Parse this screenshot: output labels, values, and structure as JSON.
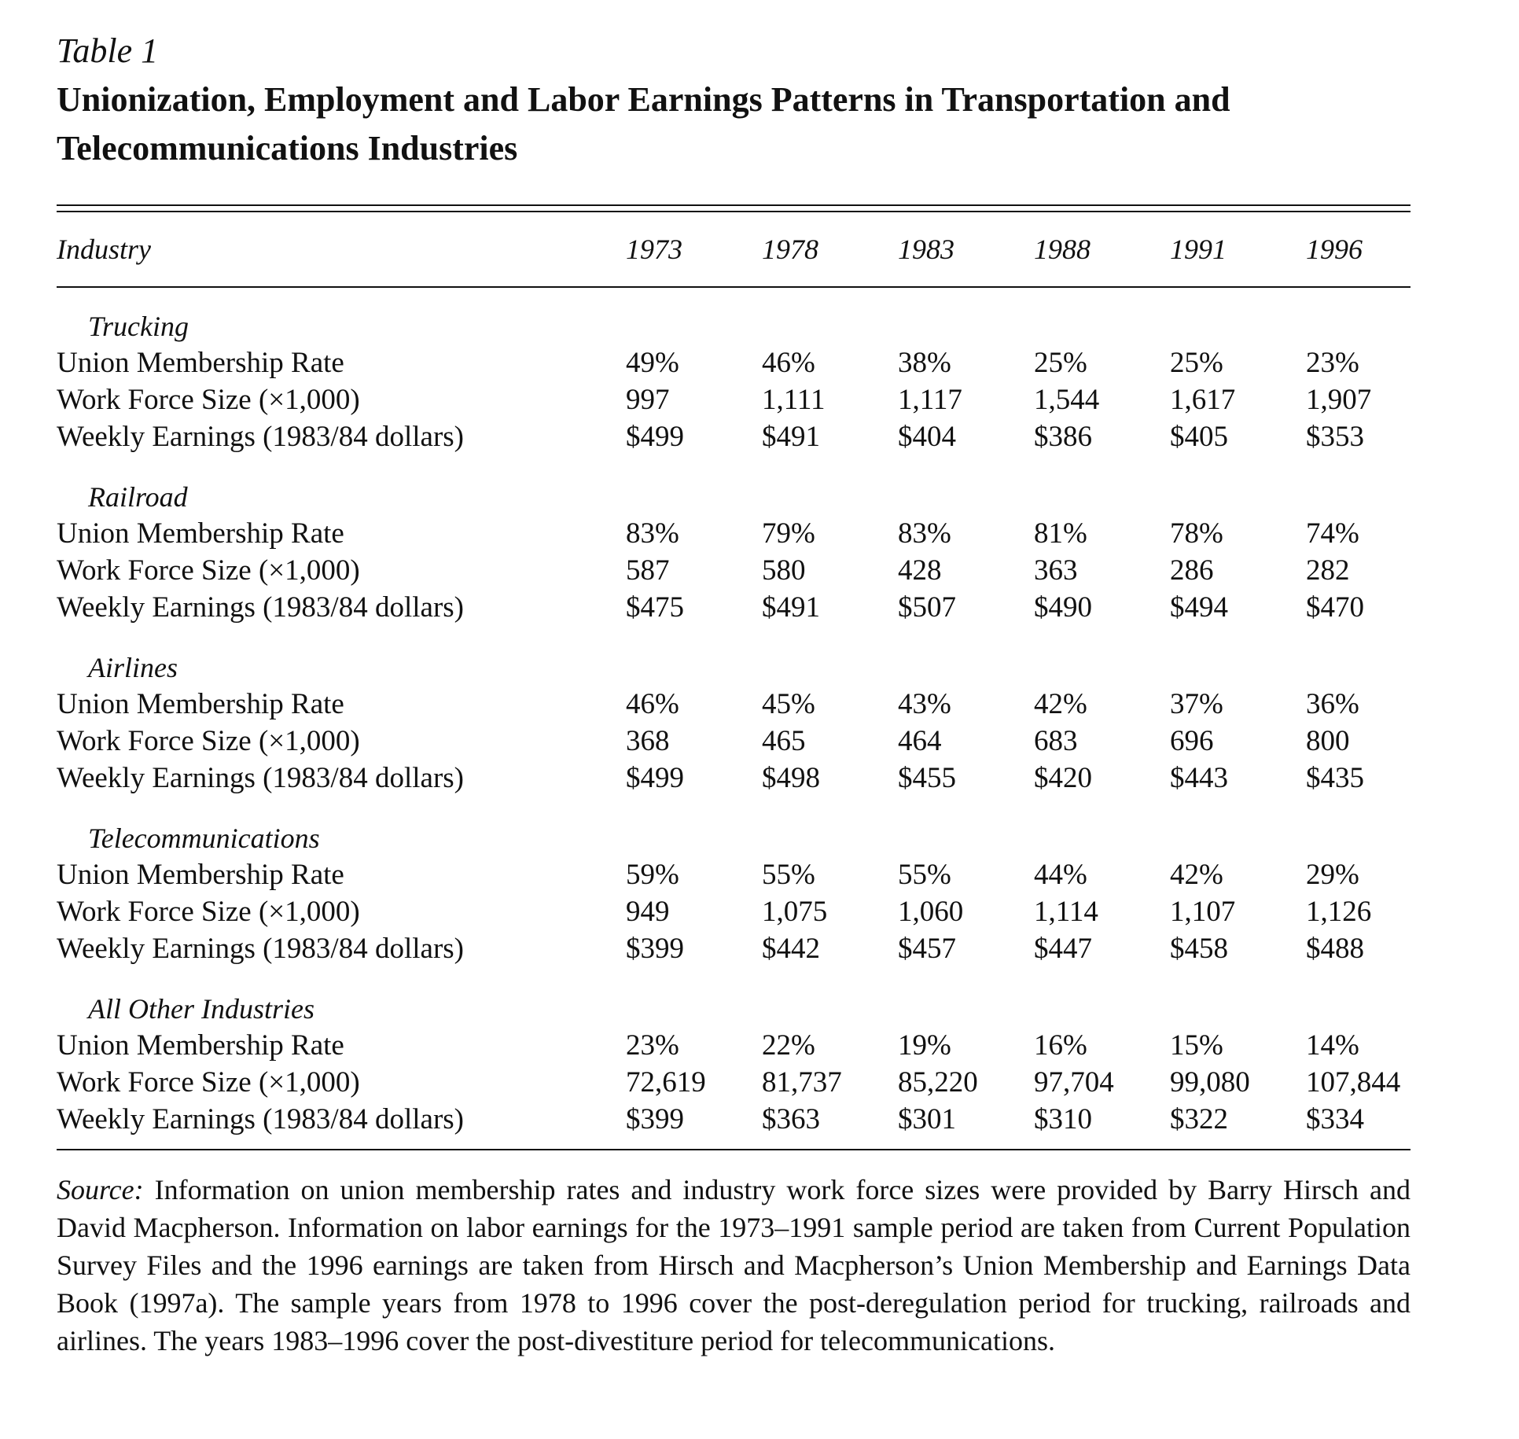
{
  "table": {
    "label": "Table 1",
    "title": "Unionization, Employment and Labor Earnings Patterns in Transportation and Telecommunications Industries",
    "header": {
      "industry": "Industry",
      "years": [
        "1973",
        "1978",
        "1983",
        "1988",
        "1991",
        "1996"
      ]
    },
    "sections": [
      {
        "name": "Trucking",
        "rows": [
          {
            "label": "Union Membership Rate",
            "values": [
              "49%",
              "46%",
              "38%",
              "25%",
              "25%",
              "23%"
            ]
          },
          {
            "label": "Work Force Size (×1,000)",
            "values": [
              "997",
              "1,111",
              "1,117",
              "1,544",
              "1,617",
              "1,907"
            ]
          },
          {
            "label": "Weekly Earnings (1983/84 dollars)",
            "values": [
              "$499",
              "$491",
              "$404",
              "$386",
              "$405",
              "$353"
            ]
          }
        ]
      },
      {
        "name": "Railroad",
        "rows": [
          {
            "label": "Union Membership Rate",
            "values": [
              "83%",
              "79%",
              "83%",
              "81%",
              "78%",
              "74%"
            ]
          },
          {
            "label": "Work Force Size (×1,000)",
            "values": [
              "587",
              "580",
              "428",
              "363",
              "286",
              "282"
            ]
          },
          {
            "label": "Weekly Earnings (1983/84 dollars)",
            "values": [
              "$475",
              "$491",
              "$507",
              "$490",
              "$494",
              "$470"
            ]
          }
        ]
      },
      {
        "name": "Airlines",
        "rows": [
          {
            "label": "Union Membership Rate",
            "values": [
              "46%",
              "45%",
              "43%",
              "42%",
              "37%",
              "36%"
            ]
          },
          {
            "label": "Work Force Size (×1,000)",
            "values": [
              "368",
              "465",
              "464",
              "683",
              "696",
              "800"
            ]
          },
          {
            "label": "Weekly Earnings (1983/84 dollars)",
            "values": [
              "$499",
              "$498",
              "$455",
              "$420",
              "$443",
              "$435"
            ]
          }
        ]
      },
      {
        "name": "Telecommunications",
        "rows": [
          {
            "label": "Union Membership Rate",
            "values": [
              "59%",
              "55%",
              "55%",
              "44%",
              "42%",
              "29%"
            ]
          },
          {
            "label": "Work Force Size (×1,000)",
            "values": [
              "949",
              "1,075",
              "1,060",
              "1,114",
              "1,107",
              "1,126"
            ]
          },
          {
            "label": "Weekly Earnings (1983/84 dollars)",
            "values": [
              "$399",
              "$442",
              "$457",
              "$447",
              "$458",
              "$488"
            ]
          }
        ]
      },
      {
        "name": "All Other Industries",
        "rows": [
          {
            "label": "Union Membership Rate",
            "values": [
              "23%",
              "22%",
              "19%",
              "16%",
              "15%",
              "14%"
            ]
          },
          {
            "label": "Work Force Size (×1,000)",
            "values": [
              "72,619",
              "81,737",
              "85,220",
              "97,704",
              "99,080",
              "107,844"
            ]
          },
          {
            "label": "Weekly Earnings (1983/84 dollars)",
            "values": [
              "$399",
              "$363",
              "$301",
              "$310",
              "$322",
              "$334"
            ]
          }
        ]
      }
    ],
    "source": {
      "lead": "Source:",
      "text": "Information on union membership rates and industry work force sizes were provided by Barry Hirsch and David Macpherson. Information on labor earnings for the 1973–1991 sample period are taken from Current Population Survey Files and the 1996 earnings are taken from Hirsch and Mac­pherson’s Union Membership and Earnings Data Book (1997a). The sample years from 1978 to 1996 cover the post-deregulation period for trucking, railroads and airlines. The years 1983–1996 cover the post-divestiture period for telecommunications."
    }
  }
}
